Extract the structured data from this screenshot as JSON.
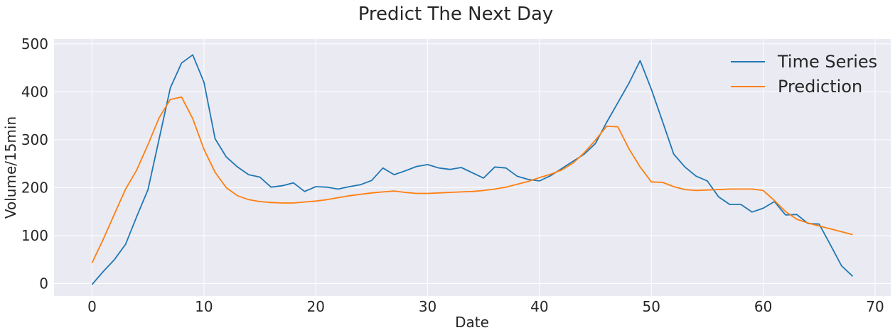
{
  "chart_data": {
    "type": "line",
    "title": "Predict The Next Day",
    "xlabel": "Date",
    "ylabel": "Volume/15min",
    "xlim": [
      -3.4,
      71.4
    ],
    "ylim": [
      -26,
      510
    ],
    "xticks": [
      0,
      10,
      20,
      30,
      40,
      50,
      60,
      70
    ],
    "yticks": [
      0,
      100,
      200,
      300,
      400,
      500
    ],
    "grid": true,
    "legend_position": "top-right",
    "x": [
      0,
      1,
      2,
      3,
      4,
      5,
      6,
      7,
      8,
      9,
      10,
      11,
      12,
      13,
      14,
      15,
      16,
      17,
      18,
      19,
      20,
      21,
      22,
      23,
      24,
      25,
      26,
      27,
      28,
      29,
      30,
      31,
      32,
      33,
      34,
      35,
      36,
      37,
      38,
      39,
      40,
      41,
      42,
      43,
      44,
      45,
      46,
      47,
      48,
      49,
      50,
      51,
      52,
      53,
      54,
      55,
      56,
      57,
      58,
      59,
      60,
      61,
      62,
      63,
      64,
      65,
      66,
      67,
      68
    ],
    "series": [
      {
        "name": "Time Series",
        "color": "#1f77b4",
        "values": [
          -2,
          25,
          50,
          82,
          140,
          196,
          302,
          408,
          460,
          477,
          420,
          302,
          264,
          243,
          227,
          222,
          201,
          204,
          210,
          192,
          202,
          201,
          197,
          202,
          206,
          215,
          241,
          227,
          235,
          244,
          248,
          241,
          238,
          242,
          231,
          220,
          243,
          241,
          224,
          217,
          214,
          225,
          240,
          255,
          270,
          292,
          336,
          377,
          418,
          465,
          405,
          338,
          270,
          243,
          224,
          214,
          181,
          165,
          165,
          149,
          157,
          171,
          143,
          144,
          125,
          124,
          81,
          37,
          15
        ]
      },
      {
        "name": "Prediction",
        "color": "#ff7f0e",
        "values": [
          43,
          92,
          145,
          197,
          237,
          290,
          346,
          384,
          389,
          344,
          280,
          232,
          200,
          183,
          175,
          171,
          169,
          168,
          168,
          170,
          172,
          175,
          179,
          183,
          186,
          189,
          191,
          193,
          190,
          188,
          188,
          189,
          190,
          191,
          192,
          194,
          197,
          201,
          207,
          213,
          221,
          228,
          237,
          251,
          273,
          299,
          328,
          327,
          281,
          243,
          212,
          211,
          202,
          196,
          194,
          195,
          196,
          197,
          197,
          197,
          194,
          173,
          150,
          134,
          126,
          120,
          114,
          108,
          102
        ]
      }
    ]
  }
}
